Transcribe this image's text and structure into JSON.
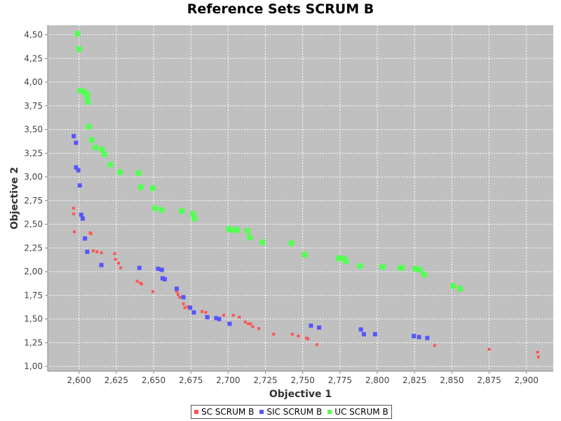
{
  "chart_data": {
    "type": "scatter",
    "title": "Reference Sets SCRUM B",
    "xlabel": "Objective 1",
    "ylabel": "Objective 2",
    "xlim": [
      2579,
      2918
    ],
    "ylim": [
      0.95,
      4.6
    ],
    "xticks": [
      "2,600",
      "2,625",
      "2,650",
      "2,675",
      "2,700",
      "2,725",
      "2,750",
      "2,775",
      "2,800",
      "2,825",
      "2,850",
      "2,875",
      "2,900"
    ],
    "xtick_values": [
      2600,
      2625,
      2650,
      2675,
      2700,
      2725,
      2750,
      2775,
      2800,
      2825,
      2850,
      2875,
      2900
    ],
    "yticks": [
      "1,00",
      "1,25",
      "1,50",
      "1,75",
      "2,00",
      "2,25",
      "2,50",
      "2,75",
      "3,00",
      "3,25",
      "3,50",
      "3,75",
      "4,00",
      "4,25",
      "4,50"
    ],
    "ytick_values": [
      1.0,
      1.25,
      1.5,
      1.75,
      2.0,
      2.25,
      2.5,
      2.75,
      3.0,
      3.25,
      3.5,
      3.75,
      4.0,
      4.25,
      4.5
    ],
    "grid": true,
    "legend_position": "bottom",
    "series": [
      {
        "name": "SC SCRUM B",
        "color": "#ff5555",
        "marker_size": 4,
        "points": [
          [
            2596.3,
            2.67
          ],
          [
            2596.5,
            2.61
          ],
          [
            2596.8,
            2.42
          ],
          [
            2607.5,
            2.41
          ],
          [
            2608.0,
            2.4
          ],
          [
            2609.5,
            2.22
          ],
          [
            2612.0,
            2.21
          ],
          [
            2615.0,
            2.2
          ],
          [
            2624.0,
            2.19
          ],
          [
            2624.5,
            2.13
          ],
          [
            2626.5,
            2.09
          ],
          [
            2628.0,
            2.04
          ],
          [
            2639.0,
            1.9
          ],
          [
            2641.0,
            1.88
          ],
          [
            2642.0,
            1.87
          ],
          [
            2649.5,
            1.79
          ],
          [
            2665.5,
            1.79
          ],
          [
            2666.5,
            1.76
          ],
          [
            2667.5,
            1.73
          ],
          [
            2670.0,
            1.66
          ],
          [
            2671.0,
            1.62
          ],
          [
            2673.0,
            1.63
          ],
          [
            2682.5,
            1.58
          ],
          [
            2685.0,
            1.57
          ],
          [
            2697.0,
            1.54
          ],
          [
            2703.5,
            1.54
          ],
          [
            2707.5,
            1.52
          ],
          [
            2711.5,
            1.47
          ],
          [
            2713.5,
            1.45
          ],
          [
            2715.0,
            1.45
          ],
          [
            2716.5,
            1.42
          ],
          [
            2720.5,
            1.4
          ],
          [
            2730.5,
            1.34
          ],
          [
            2743.0,
            1.34
          ],
          [
            2747.0,
            1.32
          ],
          [
            2752.5,
            1.3
          ],
          [
            2753.5,
            1.29
          ],
          [
            2759.5,
            1.23
          ],
          [
            2838.5,
            1.22
          ],
          [
            2875.0,
            1.18
          ],
          [
            2907.5,
            1.15
          ],
          [
            2908.0,
            1.1
          ]
        ]
      },
      {
        "name": "SIC SCRUM B",
        "color": "#5555ff",
        "marker_size": 6,
        "points": [
          [
            2596.5,
            3.43
          ],
          [
            2598.0,
            3.36
          ],
          [
            2598.0,
            3.1
          ],
          [
            2599.5,
            3.07
          ],
          [
            2600.5,
            2.91
          ],
          [
            2601.5,
            2.6
          ],
          [
            2602.5,
            2.56
          ],
          [
            2604.0,
            2.35
          ],
          [
            2605.5,
            2.21
          ],
          [
            2615.0,
            2.07
          ],
          [
            2640.5,
            2.04
          ],
          [
            2653.0,
            2.03
          ],
          [
            2655.5,
            2.02
          ],
          [
            2656.0,
            1.93
          ],
          [
            2657.5,
            1.92
          ],
          [
            2665.5,
            1.82
          ],
          [
            2670.0,
            1.73
          ],
          [
            2674.5,
            1.62
          ],
          [
            2677.0,
            1.57
          ],
          [
            2686.0,
            1.52
          ],
          [
            2692.0,
            1.51
          ],
          [
            2694.0,
            1.5
          ],
          [
            2701.0,
            1.45
          ],
          [
            2755.5,
            1.43
          ],
          [
            2761.0,
            1.41
          ],
          [
            2789.0,
            1.39
          ],
          [
            2791.0,
            1.34
          ],
          [
            2798.5,
            1.34
          ],
          [
            2824.5,
            1.32
          ],
          [
            2828.0,
            1.31
          ],
          [
            2833.5,
            1.3
          ]
        ]
      },
      {
        "name": "UC SCRUM B",
        "color": "#55ff55",
        "marker_size": 8,
        "points": [
          [
            2599.0,
            4.51
          ],
          [
            2600.0,
            4.35
          ],
          [
            2601.0,
            3.91
          ],
          [
            2603.0,
            3.9
          ],
          [
            2605.0,
            3.88
          ],
          [
            2605.5,
            3.85
          ],
          [
            2606.0,
            3.79
          ],
          [
            2606.5,
            3.53
          ],
          [
            2608.5,
            3.39
          ],
          [
            2611.0,
            3.31
          ],
          [
            2615.5,
            3.29
          ],
          [
            2617.0,
            3.24
          ],
          [
            2621.0,
            3.13
          ],
          [
            2627.5,
            3.05
          ],
          [
            2640.0,
            3.04
          ],
          [
            2641.5,
            2.89
          ],
          [
            2649.5,
            2.88
          ],
          [
            2651.0,
            2.67
          ],
          [
            2655.5,
            2.65
          ],
          [
            2669.0,
            2.64
          ],
          [
            2676.5,
            2.61
          ],
          [
            2677.5,
            2.56
          ],
          [
            2700.5,
            2.45
          ],
          [
            2703.0,
            2.44
          ],
          [
            2706.0,
            2.44
          ],
          [
            2713.0,
            2.43
          ],
          [
            2714.5,
            2.36
          ],
          [
            2723.0,
            2.31
          ],
          [
            2742.5,
            2.3
          ],
          [
            2751.5,
            2.18
          ],
          [
            2774.0,
            2.14
          ],
          [
            2777.5,
            2.14
          ],
          [
            2779.0,
            2.11
          ],
          [
            2788.5,
            2.06
          ],
          [
            2803.5,
            2.05
          ],
          [
            2815.5,
            2.04
          ],
          [
            2816.5,
            2.04
          ],
          [
            2825.5,
            2.03
          ],
          [
            2828.5,
            2.02
          ],
          [
            2831.5,
            1.97
          ],
          [
            2851.0,
            1.85
          ],
          [
            2855.5,
            1.82
          ]
        ]
      }
    ]
  }
}
